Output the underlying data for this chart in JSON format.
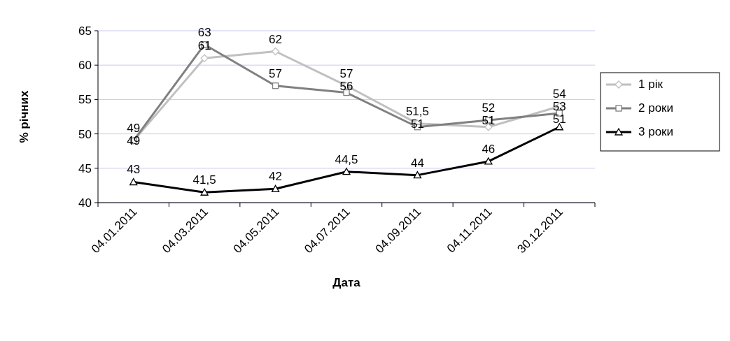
{
  "chart_data": {
    "type": "line",
    "xlabel": "Дата",
    "ylabel": "% річних",
    "categories": [
      "04.01.2011",
      "04.03.2011",
      "04.05.2011",
      "04.07.2011",
      "04.09.2011",
      "04.11.2011",
      "30.12.2011"
    ],
    "ylim": [
      40,
      65
    ],
    "yticks": [
      40,
      45,
      50,
      55,
      60,
      65
    ],
    "grid": "y",
    "legend": "right",
    "series": [
      {
        "name": "1 рік",
        "color": "#c0c0c0",
        "marker": "diamond",
        "values": [
          49,
          61,
          62,
          57,
          51.5,
          51,
          54
        ],
        "value_labels": [
          "49",
          "61",
          "62",
          "57",
          "51,5",
          "51",
          "54"
        ]
      },
      {
        "name": "2 роки",
        "color": "#808080",
        "marker": "square",
        "values": [
          49,
          63,
          57,
          56,
          51,
          52,
          53
        ],
        "value_labels": [
          "49",
          "63",
          "57",
          "56",
          "51",
          "52",
          "53"
        ]
      },
      {
        "name": "3 роки",
        "color": "#000000",
        "marker": "triangle",
        "values": [
          43,
          41.5,
          42,
          44.5,
          44,
          46,
          51
        ],
        "value_labels": [
          "43",
          "41,5",
          "42",
          "44,5",
          "44",
          "46",
          "51"
        ]
      }
    ]
  }
}
